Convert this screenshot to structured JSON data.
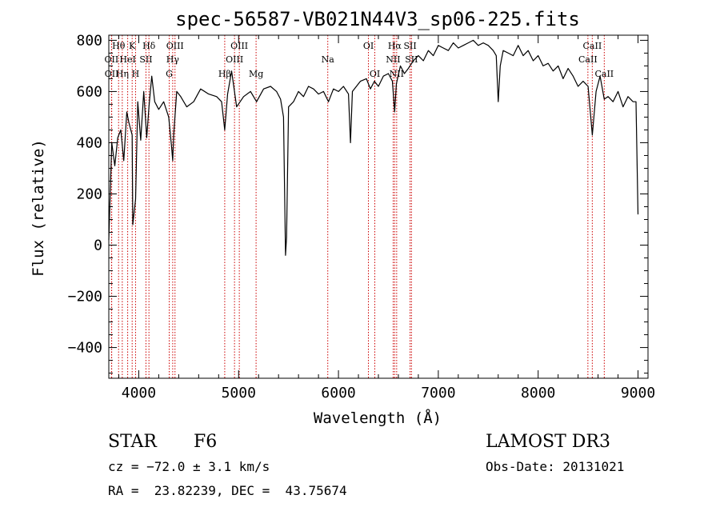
{
  "chart_data": {
    "type": "line",
    "title": "spec-56587-VB021N44V3_sp06-225.fits",
    "xlabel": "Wavelength (Å)",
    "ylabel": "Flux (relative)",
    "xlim": [
      3700,
      9100
    ],
    "ylim": [
      -520,
      820
    ],
    "x_ticks": [
      4000,
      5000,
      6000,
      7000,
      8000,
      9000
    ],
    "x_tick_labels": [
      "4000",
      "5000",
      "6000",
      "7000",
      "8000",
      "9000"
    ],
    "y_ticks": [
      -400,
      -200,
      0,
      200,
      400,
      600,
      800
    ],
    "y_tick_labels": [
      "−400",
      "−200",
      "0",
      "200",
      "400",
      "600",
      "800"
    ],
    "series": [
      {
        "name": "flux",
        "x": [
          3700,
          3730,
          3760,
          3790,
          3820,
          3850,
          3880,
          3900,
          3934,
          3940,
          3968,
          3990,
          4020,
          4050,
          4080,
          4102,
          4130,
          4160,
          4200,
          4250,
          4300,
          4330,
          4340,
          4350,
          4380,
          4420,
          4480,
          4550,
          4620,
          4700,
          4780,
          4830,
          4861,
          4890,
          4930,
          4980,
          5050,
          5120,
          5180,
          5250,
          5320,
          5380,
          5420,
          5450,
          5470,
          5480,
          5500,
          5550,
          5600,
          5650,
          5700,
          5750,
          5800,
          5850,
          5900,
          5950,
          6000,
          6050,
          6100,
          6120,
          6140,
          6180,
          6220,
          6280,
          6320,
          6360,
          6400,
          6450,
          6500,
          6540,
          6563,
          6580,
          6620,
          6660,
          6700,
          6750,
          6800,
          6850,
          6900,
          6950,
          7000,
          7050,
          7100,
          7150,
          7200,
          7250,
          7300,
          7350,
          7400,
          7450,
          7500,
          7550,
          7580,
          7600,
          7620,
          7650,
          7700,
          7750,
          7800,
          7850,
          7900,
          7950,
          8000,
          8050,
          8100,
          8150,
          8200,
          8250,
          8300,
          8350,
          8400,
          8450,
          8500,
          8542,
          8580,
          8620,
          8662,
          8700,
          8750,
          8800,
          8850,
          8900,
          8950,
          8980,
          9000
        ],
        "y": [
          20,
          400,
          310,
          420,
          450,
          330,
          520,
          480,
          430,
          80,
          180,
          560,
          410,
          600,
          420,
          540,
          660,
          560,
          530,
          560,
          500,
          380,
          330,
          430,
          600,
          580,
          540,
          560,
          610,
          590,
          580,
          560,
          450,
          590,
          680,
          540,
          580,
          600,
          560,
          610,
          620,
          600,
          570,
          500,
          -40,
          30,
          540,
          560,
          600,
          580,
          620,
          610,
          590,
          600,
          560,
          610,
          600,
          620,
          590,
          400,
          600,
          620,
          640,
          650,
          610,
          640,
          620,
          660,
          670,
          640,
          520,
          630,
          700,
          670,
          690,
          720,
          740,
          720,
          760,
          740,
          780,
          770,
          760,
          790,
          770,
          780,
          790,
          800,
          780,
          790,
          780,
          760,
          740,
          560,
          700,
          760,
          750,
          740,
          780,
          740,
          760,
          720,
          740,
          700,
          710,
          680,
          700,
          650,
          690,
          660,
          620,
          640,
          620,
          430,
          600,
          660,
          570,
          580,
          560,
          600,
          540,
          580,
          560,
          560,
          120
        ]
      }
    ],
    "lines": [
      {
        "name": "Hθ",
        "wavelength": 3798,
        "row": 1
      },
      {
        "name": "K",
        "wavelength": 3934,
        "row": 1
      },
      {
        "name": "Hδ",
        "wavelength": 4102,
        "row": 1
      },
      {
        "name": "OIII",
        "wavelength": 4363,
        "row": 1
      },
      {
        "name": "OIII",
        "wavelength": 5007,
        "row": 1
      },
      {
        "name": "OI",
        "wavelength": 6300,
        "row": 1
      },
      {
        "name": "Hα",
        "wavelength": 6563,
        "row": 1
      },
      {
        "name": "SII",
        "wavelength": 6717,
        "row": 1
      },
      {
        "name": "CaII",
        "wavelength": 8542,
        "row": 1
      },
      {
        "name": "OII",
        "wavelength": 3727,
        "row": 2
      },
      {
        "name": "HeI",
        "wavelength": 3889,
        "row": 2
      },
      {
        "name": "SII",
        "wavelength": 4072,
        "row": 2
      },
      {
        "name": "Hγ",
        "wavelength": 4340,
        "row": 2
      },
      {
        "name": "OIII",
        "wavelength": 4959,
        "row": 2
      },
      {
        "name": "Na",
        "wavelength": 5893,
        "row": 2
      },
      {
        "name": "NII",
        "wavelength": 6548,
        "row": 2
      },
      {
        "name": "SII",
        "wavelength": 6731,
        "row": 2
      },
      {
        "name": "CaII",
        "wavelength": 8498,
        "row": 2
      },
      {
        "name": "OII",
        "wavelength": 3729,
        "row": 3
      },
      {
        "name": "Hη",
        "wavelength": 3835,
        "row": 3
      },
      {
        "name": "H",
        "wavelength": 3968,
        "row": 3
      },
      {
        "name": "G",
        "wavelength": 4305,
        "row": 3
      },
      {
        "name": "Hβ",
        "wavelength": 4861,
        "row": 3
      },
      {
        "name": "Mg",
        "wavelength": 5175,
        "row": 3
      },
      {
        "name": "OI",
        "wavelength": 6364,
        "row": 3
      },
      {
        "name": "NII",
        "wavelength": 6583,
        "row": 3
      },
      {
        "name": "CaII",
        "wavelength": 8662,
        "row": 3
      }
    ]
  },
  "info": {
    "object_type": "STAR",
    "subclass": "F6",
    "survey": "LAMOST DR3",
    "cz": "cz = −72.0 ± 3.1 km/s",
    "obs_date": "Obs-Date: 20131021",
    "coords": "RA =  23.82239, DEC =  43.75674"
  },
  "colors": {
    "line": "#cc0000",
    "spectrum": "#000000"
  }
}
